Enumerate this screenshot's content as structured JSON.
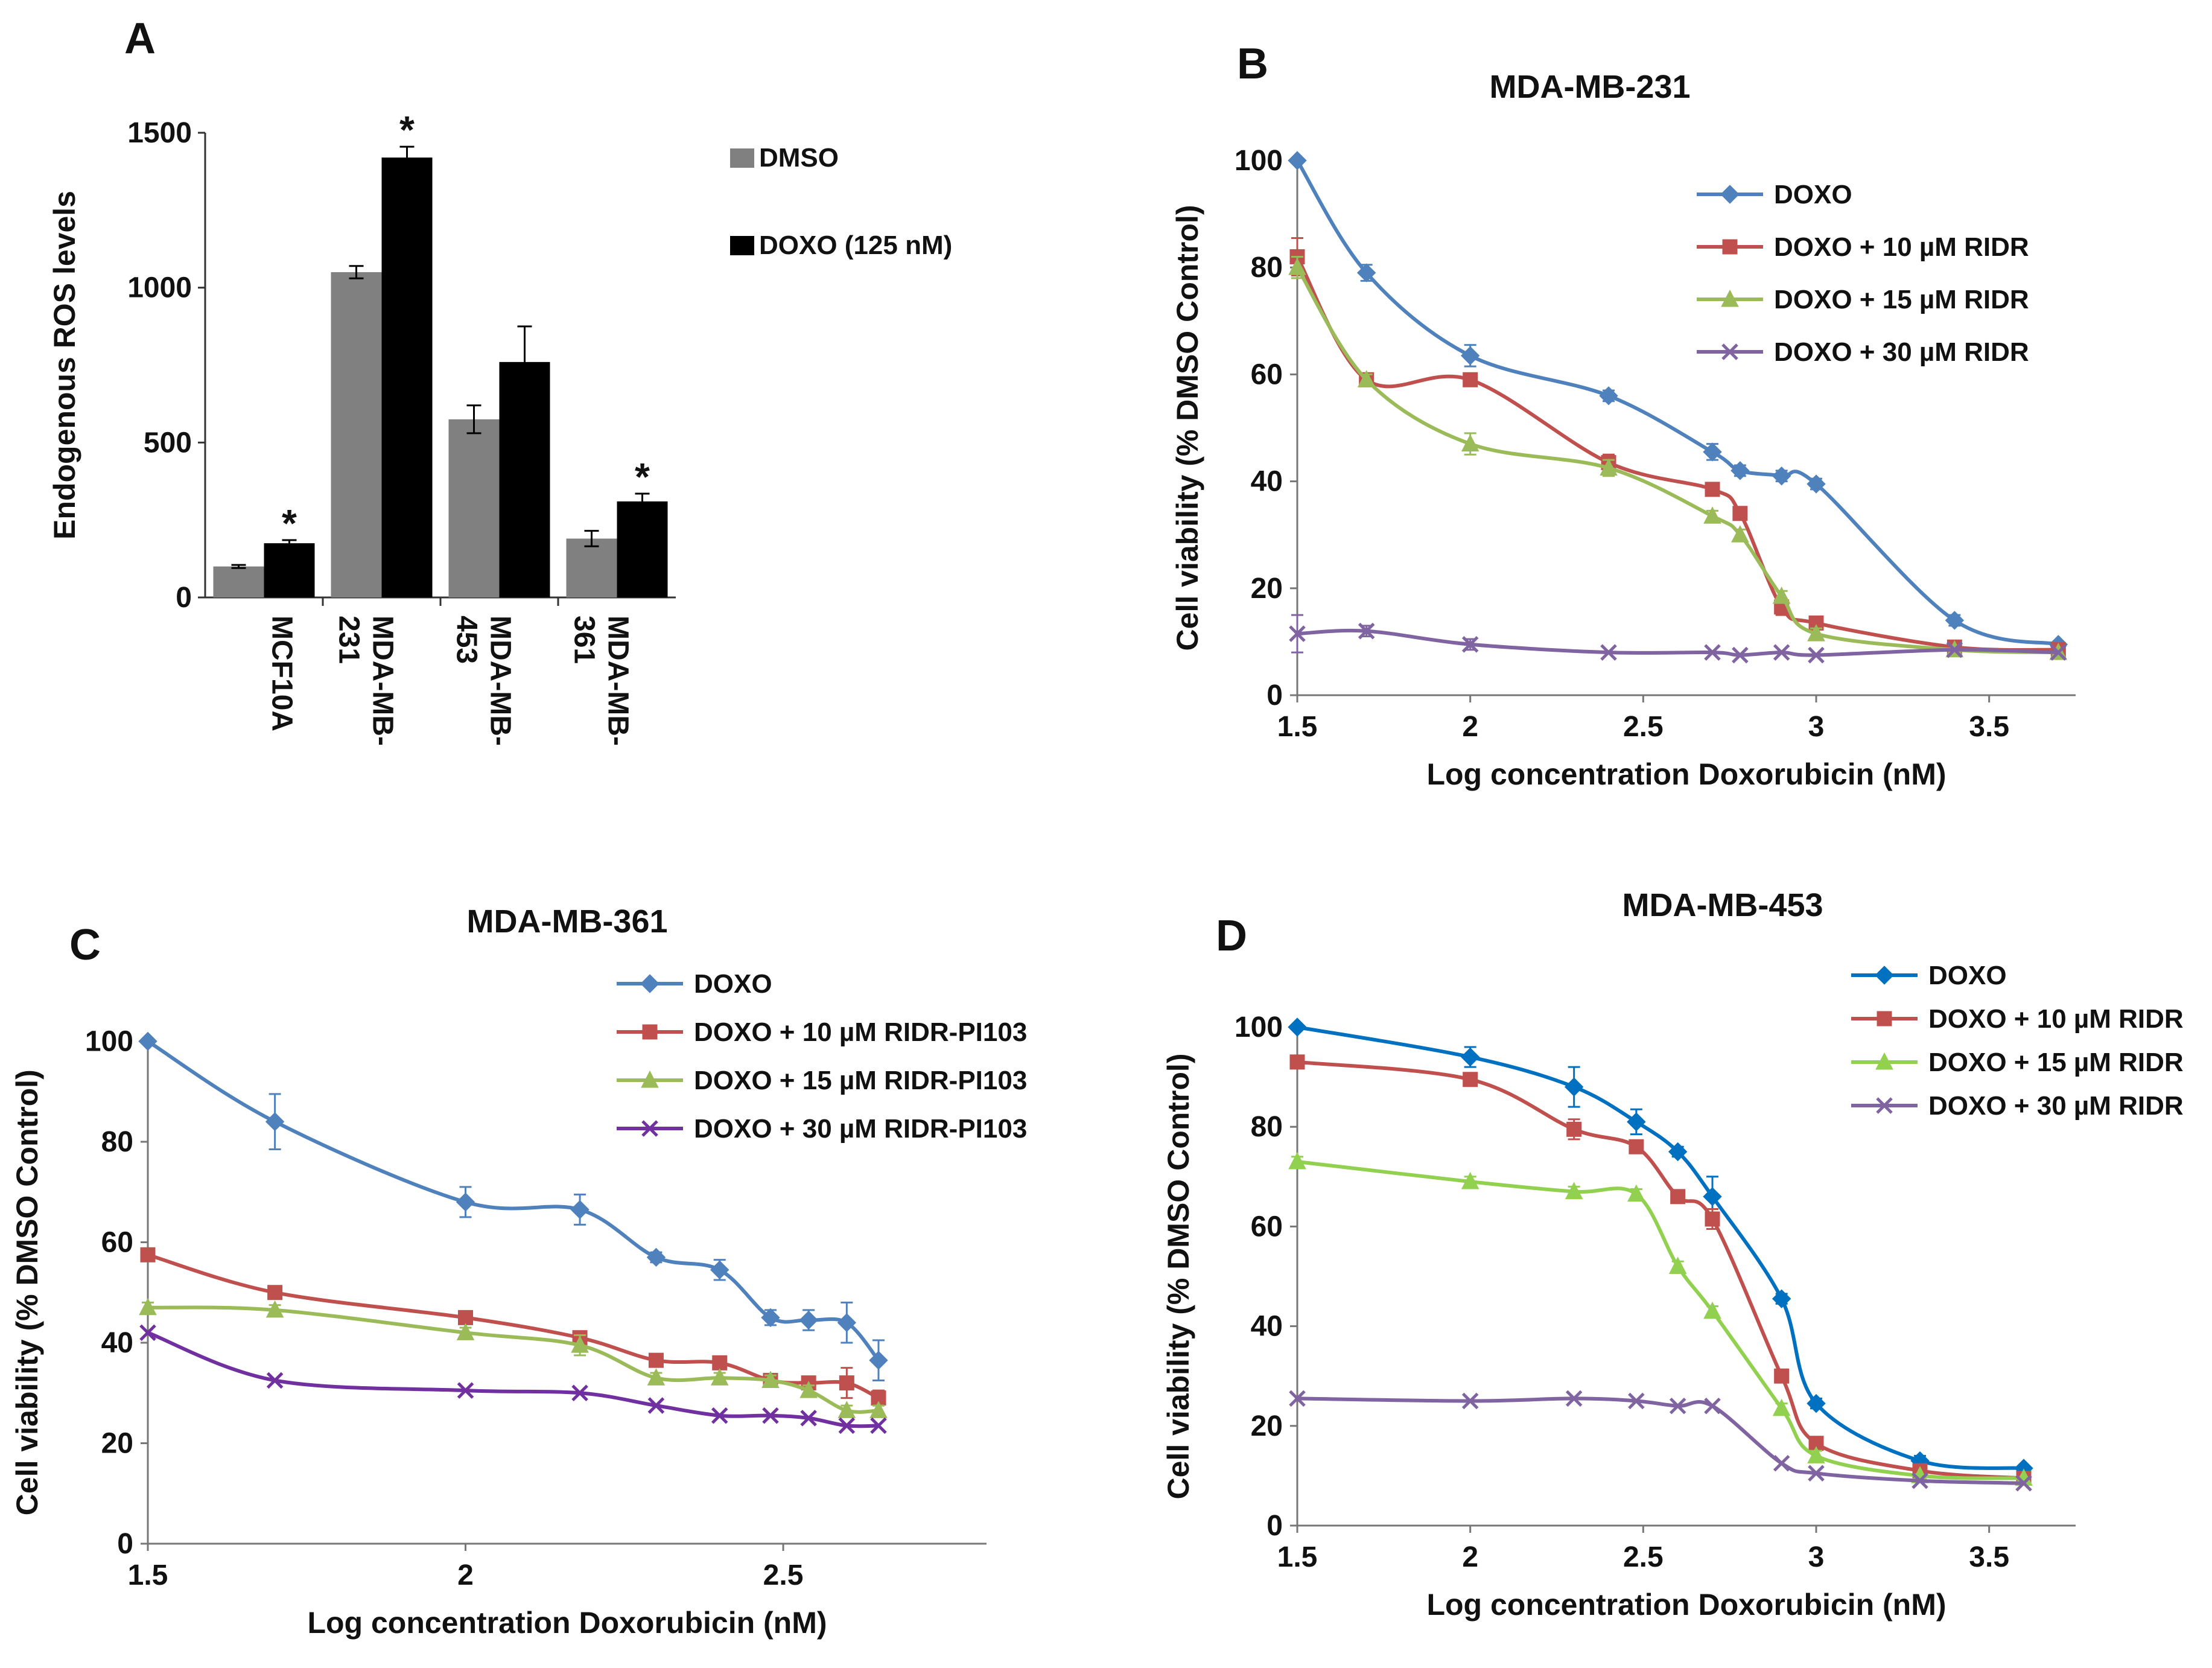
{
  "chart_data": [
    {
      "panel": "A",
      "type": "bar",
      "title": "",
      "xlabel": "",
      "ylabel": "Endogenous ROS levels",
      "ylim": [
        0,
        1500
      ],
      "yticks": [
        0,
        500,
        1000,
        1500
      ],
      "categories": [
        "MCF10A",
        "MDA-MB-231",
        "MDA-MB-453",
        "MDA-MB-361"
      ],
      "category_lines": [
        [
          "MCF10A"
        ],
        [
          "MDA-MB-",
          "231"
        ],
        [
          "MDA-MB-",
          "453"
        ],
        [
          "MDA-MB-",
          "361"
        ]
      ],
      "legend_position": "top-right",
      "series": [
        {
          "name": "DMSO",
          "color": "#808080",
          "values": [
            100,
            1050,
            575,
            190
          ],
          "errors": [
            5,
            20,
            45,
            25
          ]
        },
        {
          "name": "DOXO (125 nM)",
          "color": "#000000",
          "values": [
            175,
            1420,
            760,
            310
          ],
          "errors": [
            10,
            35,
            115,
            25
          ]
        }
      ],
      "annotations": [
        {
          "text": "*",
          "category": "MCF10A",
          "series": "DOXO (125 nM)"
        },
        {
          "text": "*",
          "category": "MDA-MB-231",
          "series": "DOXO (125 nM)"
        },
        {
          "text": "*",
          "category": "MDA-MB-361",
          "series": "DOXO (125 nM)"
        }
      ]
    },
    {
      "panel": "B",
      "type": "line",
      "title": "MDA-MB-231",
      "xlabel": "Log concentration Doxorubicin (nM)",
      "ylabel": "Cell viability (% DMSO Control)",
      "xlim": [
        1.5,
        3.75
      ],
      "ylim": [
        0,
        100
      ],
      "xticks": [
        1.5,
        2,
        2.5,
        3,
        3.5
      ],
      "xtick_labels": [
        "1.5",
        "2",
        "2.5",
        "3",
        "3.5"
      ],
      "yticks": [
        0,
        20,
        40,
        60,
        80,
        100
      ],
      "legend_position": "top-right",
      "series": [
        {
          "name": "DOXO",
          "color": "#4F81BD",
          "marker": "diamond",
          "x": [
            1.5,
            1.7,
            2.0,
            2.4,
            2.7,
            2.78,
            2.9,
            3.0,
            3.4,
            3.7
          ],
          "y": [
            100,
            79,
            63.5,
            56,
            45.5,
            42,
            41,
            39.5,
            14,
            9.5
          ],
          "err": [
            0,
            1.5,
            2,
            1,
            1.5,
            1,
            1,
            1,
            1,
            0.5
          ]
        },
        {
          "name": "DOXO + 10 µM  RIDR",
          "color": "#C0504D",
          "marker": "square",
          "x": [
            1.5,
            1.7,
            2.0,
            2.4,
            2.7,
            2.78,
            2.9,
            3.0,
            3.4,
            3.7
          ],
          "y": [
            82,
            59,
            59,
            43.5,
            38.5,
            34,
            16.5,
            13.5,
            9,
            8.5
          ],
          "err": [
            3.5,
            1,
            1,
            1.5,
            1,
            1,
            1.5,
            1,
            0.5,
            0.5
          ]
        },
        {
          "name": "DOXO + 15 µM  RIDR",
          "color": "#9BBB59",
          "marker": "triangle",
          "x": [
            1.5,
            1.7,
            2.0,
            2.4,
            2.7,
            2.78,
            2.9,
            3.0,
            3.4,
            3.7
          ],
          "y": [
            80,
            59,
            47,
            42.5,
            33.5,
            30,
            18.5,
            11.5,
            8.5,
            8
          ],
          "err": [
            2,
            1,
            2,
            1.5,
            1,
            1,
            1,
            1,
            0.5,
            0.5
          ]
        },
        {
          "name": "DOXO +  30 µM  RIDR",
          "color": "#8064A2",
          "marker": "x",
          "x": [
            1.5,
            1.7,
            2.0,
            2.4,
            2.7,
            2.78,
            2.9,
            3.0,
            3.4,
            3.7
          ],
          "y": [
            11.5,
            12,
            9.5,
            8,
            8,
            7.5,
            8,
            7.5,
            8.5,
            8
          ],
          "err": [
            3.5,
            1,
            1,
            0.5,
            0.5,
            0.5,
            0.5,
            0.5,
            0.5,
            0.5
          ]
        }
      ]
    },
    {
      "panel": "C",
      "type": "line",
      "title": "MDA-MB-361",
      "xlabel": "Log concentration Doxorubicin (nM)",
      "ylabel": "Cell viability (% DMSO Control)",
      "xlim": [
        1.5,
        2.82
      ],
      "ylim": [
        0,
        120
      ],
      "xticks": [
        1.5,
        2,
        2.5
      ],
      "xtick_labels": [
        "1.5",
        "2",
        "2.5"
      ],
      "yticks": [
        0,
        20,
        40,
        60,
        80,
        100
      ],
      "legend_position": "top-right",
      "series": [
        {
          "name": "DOXO",
          "color": "#4F81BD",
          "marker": "diamond",
          "x": [
            1.5,
            1.7,
            2.0,
            2.18,
            2.3,
            2.4,
            2.48,
            2.54,
            2.6,
            2.65
          ],
          "y": [
            100,
            84,
            68,
            66.5,
            57,
            54.5,
            45,
            44.5,
            44,
            36.5
          ],
          "err": [
            0,
            5.5,
            3,
            3,
            1,
            2,
            1.5,
            2,
            4,
            4
          ]
        },
        {
          "name": "DOXO + 10 µM RIDR-PI103",
          "color": "#C0504D",
          "marker": "square",
          "x": [
            1.5,
            1.7,
            2.0,
            2.18,
            2.3,
            2.4,
            2.48,
            2.54,
            2.6,
            2.65
          ],
          "y": [
            57.5,
            50,
            45,
            41,
            36.5,
            36,
            32.5,
            32,
            32,
            29
          ],
          "err": [
            1,
            1,
            1,
            1,
            1,
            1,
            1,
            1,
            3,
            1.5
          ]
        },
        {
          "name": "DOXO + 15 µM RIDR-PI103",
          "color": "#9BBB59",
          "marker": "triangle",
          "x": [
            1.5,
            1.7,
            2.0,
            2.18,
            2.3,
            2.4,
            2.48,
            2.54,
            2.6,
            2.65
          ],
          "y": [
            47,
            46.5,
            42,
            39.5,
            33,
            33,
            32.5,
            30.5,
            26.5,
            26.5
          ],
          "err": [
            1,
            1,
            1,
            2,
            1,
            1,
            1,
            1,
            1,
            1
          ]
        },
        {
          "name": "DOXO + 30 µM RIDR-PI103",
          "color": "#7030A0",
          "marker": "x",
          "x": [
            1.5,
            1.7,
            2.0,
            2.18,
            2.3,
            2.4,
            2.48,
            2.54,
            2.6,
            2.65
          ],
          "y": [
            42,
            32.5,
            30.5,
            30,
            27.5,
            25.5,
            25.5,
            25,
            23.5,
            23.5
          ],
          "err": [
            0.5,
            0.5,
            0.5,
            0.5,
            0.5,
            0.5,
            0.5,
            0.5,
            0.5,
            0.5
          ]
        }
      ]
    },
    {
      "panel": "D",
      "type": "line",
      "title": "MDA-MB-453",
      "xlabel": "Log concentration Doxorubicin (nM)",
      "ylabel": "Cell viability (% DMSO Control)",
      "xlim": [
        1.5,
        3.75
      ],
      "ylim": [
        0,
        100
      ],
      "xticks": [
        1.5,
        2,
        2.5,
        3,
        3.5
      ],
      "xtick_labels": [
        "1.5",
        "2",
        "2.5",
        "3",
        "3.5"
      ],
      "yticks": [
        0,
        20,
        40,
        60,
        80,
        100
      ],
      "legend_position": "top-right",
      "series": [
        {
          "name": "DOXO",
          "color": "#0070C0",
          "marker": "diamond",
          "x": [
            1.5,
            2.0,
            2.3,
            2.48,
            2.6,
            2.7,
            2.9,
            3.0,
            3.3,
            3.6
          ],
          "y": [
            100,
            94,
            88,
            81,
            75,
            66,
            45.5,
            24.5,
            13,
            11.5
          ],
          "err": [
            0.5,
            2,
            4,
            2.5,
            1,
            4,
            1,
            1,
            1,
            0.5
          ]
        },
        {
          "name": "DOXO + 10 µM RIDR",
          "color": "#C0504D",
          "marker": "square",
          "x": [
            1.5,
            2.0,
            2.3,
            2.48,
            2.6,
            2.7,
            2.9,
            3.0,
            3.3,
            3.6
          ],
          "y": [
            93,
            89.5,
            79.5,
            76,
            66,
            61.5,
            30,
            16.5,
            11,
            9.5
          ],
          "err": [
            1,
            1,
            2,
            1,
            1,
            2,
            1,
            1,
            1,
            0.5
          ]
        },
        {
          "name": "DOXO + 15 µM RIDR",
          "color": "#92D050",
          "marker": "triangle",
          "x": [
            1.5,
            2.0,
            2.3,
            2.48,
            2.6,
            2.7,
            2.9,
            3.0,
            3.3,
            3.6
          ],
          "y": [
            73,
            69,
            67,
            66.5,
            52,
            43,
            23.5,
            14,
            10,
            9.5
          ],
          "err": [
            1,
            1,
            1,
            1,
            1,
            1,
            1,
            1,
            0.5,
            0.5
          ]
        },
        {
          "name": "DOXO + 30 µM RIDR",
          "color": "#8064A2",
          "marker": "x",
          "x": [
            1.5,
            2.0,
            2.3,
            2.48,
            2.6,
            2.7,
            2.9,
            3.0,
            3.3,
            3.6
          ],
          "y": [
            25.5,
            25,
            25.5,
            25,
            24,
            24,
            12.5,
            10.5,
            9,
            8.5
          ],
          "err": [
            0.5,
            0.5,
            0.5,
            0.5,
            0.5,
            0.5,
            0.5,
            0.5,
            0.5,
            0.5
          ]
        }
      ]
    }
  ]
}
